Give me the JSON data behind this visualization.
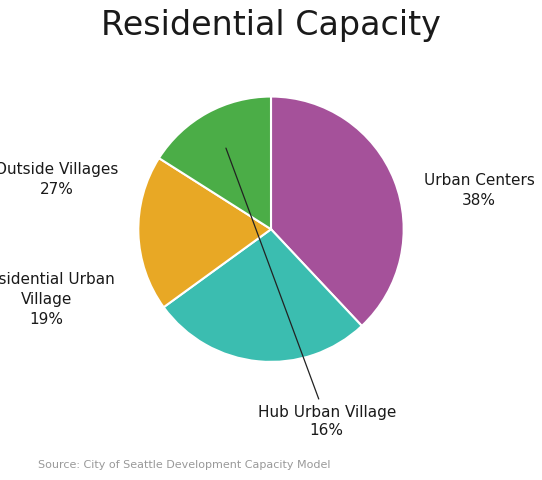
{
  "title": "Residential Capacity",
  "values": [
    38,
    27,
    19,
    16
  ],
  "colors": [
    "#A5519A",
    "#3BBDB0",
    "#E8A825",
    "#4BAD47"
  ],
  "startangle": 90,
  "slice_order": [
    "Urban Centers",
    "Outside Villages",
    "Residential Urban Village",
    "Hub Urban Village"
  ],
  "source_text": "Source: City of Seattle Development Capacity Model",
  "background_color": "#ffffff",
  "title_fontsize": 24,
  "label_fontsize": 11,
  "source_fontsize": 8
}
